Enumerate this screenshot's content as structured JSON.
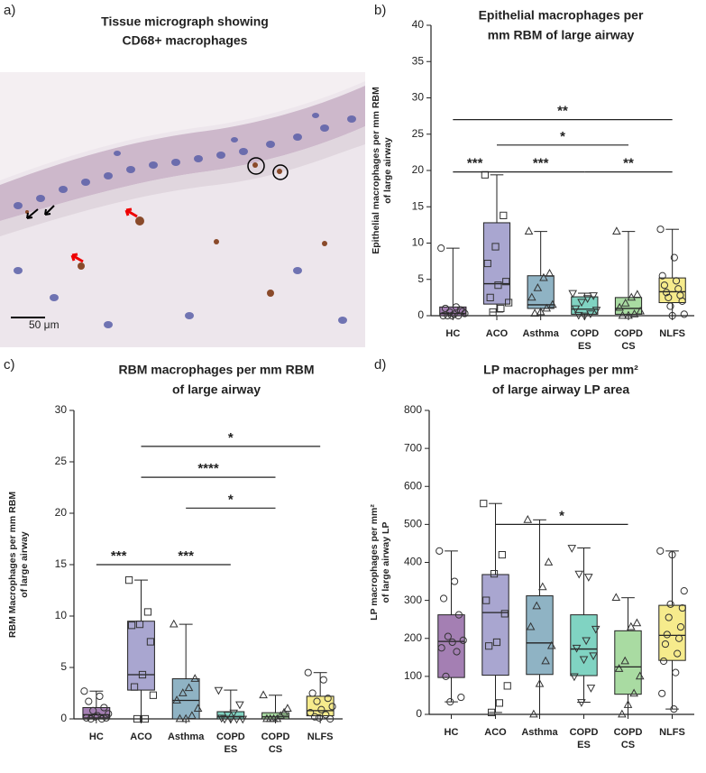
{
  "micrograph": {
    "label": "a)",
    "title": [
      "Tissue micrograph showing",
      "CD68+ macrophages"
    ],
    "scale_bar": "50 μm"
  },
  "chart_data": [
    {
      "type": "box",
      "panel_label": "b)",
      "title": [
        "Epithelial macrophages per",
        "mm RBM of large airway"
      ],
      "ylabel": [
        "Epithelial macrophages per mm RBM",
        "of large airway"
      ],
      "categories": [
        [
          "HC"
        ],
        [
          "ACO"
        ],
        [
          "Asthma"
        ],
        [
          "COPD",
          "ES"
        ],
        [
          "COPD",
          "CS"
        ],
        [
          "NLFS"
        ]
      ],
      "ylim": [
        0,
        40
      ],
      "yticks": [
        0,
        5,
        10,
        15,
        20,
        25,
        30,
        35,
        40
      ],
      "boxes": [
        {
          "color": "#a47fb3",
          "marker": "circle",
          "min": 0,
          "q1": 0,
          "median": 0.3,
          "q3": 1.2,
          "max": 9.3,
          "points": [
            9.3,
            1.2,
            1,
            0.8,
            0.5,
            0.3,
            0.2,
            0,
            0,
            0,
            0.6,
            0
          ]
        },
        {
          "color": "#a9a6d0",
          "marker": "square",
          "min": 0.5,
          "q1": 1.6,
          "median": 4.4,
          "q3": 12.8,
          "max": 19.4,
          "points": [
            19.4,
            13.8,
            9.5,
            7.2,
            4.7,
            4.2,
            2.5,
            1.8,
            1,
            0.5
          ]
        },
        {
          "color": "#8fb3c4",
          "marker": "triangle",
          "min": 0,
          "q1": 1,
          "median": 1.5,
          "q3": 5.5,
          "max": 11.6,
          "points": [
            11.6,
            5.8,
            5.2,
            3.8,
            2.5,
            1.5,
            1,
            0.5,
            0.3
          ]
        },
        {
          "color": "#80d3c2",
          "marker": "triangle-down",
          "min": 0,
          "q1": 0.2,
          "median": 0.9,
          "q3": 2.6,
          "max": 3.1,
          "points": [
            3.1,
            2.8,
            2.4,
            1.9,
            1,
            0.8,
            0.3,
            0,
            0.1
          ]
        },
        {
          "color": "#a9dba2",
          "marker": "triangle",
          "min": 0,
          "q1": 0.2,
          "median": 1,
          "q3": 2.5,
          "max": 11.6,
          "points": [
            11.6,
            2.9,
            2.5,
            1.7,
            1.1,
            0.6,
            0.2,
            0,
            0
          ]
        },
        {
          "color": "#f6eb8c",
          "marker": "circle",
          "min": 0,
          "q1": 1.8,
          "median": 3.3,
          "q3": 5.2,
          "max": 11.9,
          "points": [
            11.9,
            8,
            5.5,
            4.8,
            4.2,
            3.7,
            3.2,
            2.8,
            2.5,
            2,
            1.3,
            0.2,
            0
          ]
        }
      ],
      "significance": [
        {
          "from": 0,
          "to": 5,
          "y": 27,
          "label": "**"
        },
        {
          "from": 1,
          "to": 4,
          "y": 23.5,
          "label": "*"
        },
        {
          "from": 0,
          "to": 1,
          "y": 19.8,
          "label": "***"
        },
        {
          "from": 1,
          "to": 3,
          "y": 19.8,
          "label": "***"
        },
        {
          "from": 3,
          "to": 5,
          "y": 19.8,
          "label": "**"
        }
      ]
    },
    {
      "type": "box",
      "panel_label": "c)",
      "title": [
        "RBM macrophages per mm RBM",
        "of large airway"
      ],
      "ylabel": [
        "RBM Macrophages per mm RBM",
        "of large airway"
      ],
      "categories": [
        [
          "HC"
        ],
        [
          "ACO"
        ],
        [
          "Asthma"
        ],
        [
          "COPD",
          "ES"
        ],
        [
          "COPD",
          "CS"
        ],
        [
          "NLFS"
        ]
      ],
      "ylim": [
        0,
        30
      ],
      "yticks": [
        0,
        5,
        10,
        15,
        20,
        25,
        30
      ],
      "boxes": [
        {
          "color": "#a47fb3",
          "marker": "circle",
          "min": 0,
          "q1": 0.1,
          "median": 0.4,
          "q3": 1.1,
          "max": 2.7,
          "points": [
            2.7,
            2.2,
            1.7,
            1.1,
            0.8,
            0.5,
            0.3,
            0.1,
            0,
            0,
            0.1,
            0.2
          ]
        },
        {
          "color": "#a9a6d0",
          "marker": "square",
          "min": 0,
          "q1": 2.8,
          "median": 4.3,
          "q3": 9.5,
          "max": 13.5,
          "points": [
            13.5,
            10.4,
            9.2,
            9.1,
            7.5,
            4.3,
            3.1,
            2.3,
            0,
            0
          ]
        },
        {
          "color": "#8fb3c4",
          "marker": "triangle",
          "min": 0,
          "q1": 0,
          "median": 1.8,
          "q3": 3.9,
          "max": 9.2,
          "points": [
            9.2,
            3.9,
            3,
            2.5,
            1.8,
            1,
            0.3,
            0,
            0
          ]
        },
        {
          "color": "#80d3c2",
          "marker": "triangle-down",
          "min": 0,
          "q1": 0,
          "median": 0.2,
          "q3": 0.7,
          "max": 2.8,
          "points": [
            2.8,
            1.4,
            0.6,
            0.4,
            0.1,
            0,
            0,
            0,
            0
          ]
        },
        {
          "color": "#a9dba2",
          "marker": "triangle",
          "min": 0,
          "q1": 0,
          "median": 0.2,
          "q3": 0.6,
          "max": 2.3,
          "points": [
            2.3,
            1,
            0.6,
            0.3,
            0,
            0,
            0,
            0
          ]
        },
        {
          "color": "#f6eb8c",
          "marker": "circle",
          "min": 0,
          "q1": 0.3,
          "median": 0.8,
          "q3": 2.2,
          "max": 4.5,
          "points": [
            4.5,
            3.8,
            2.5,
            2,
            1.7,
            1.2,
            0.9,
            0.6,
            0.4,
            0.2,
            0,
            0.1
          ]
        }
      ],
      "significance": [
        {
          "from": 1,
          "to": 5,
          "y": 26.5,
          "label": "*"
        },
        {
          "from": 1,
          "to": 4,
          "y": 23.5,
          "label": "****"
        },
        {
          "from": 2,
          "to": 4,
          "y": 20.5,
          "label": "*"
        },
        {
          "from": 0,
          "to": 1,
          "y": 15,
          "label": "***"
        },
        {
          "from": 1,
          "to": 3,
          "y": 15,
          "label": "***"
        }
      ]
    },
    {
      "type": "box",
      "panel_label": "d)",
      "title": [
        "LP macrophages per mm²",
        "of large airway LP area"
      ],
      "ylabel": [
        "LP macrophages per mm²",
        "of large airway LP"
      ],
      "categories": [
        [
          "HC"
        ],
        [
          "ACO"
        ],
        [
          "Asthma"
        ],
        [
          "COPD",
          "ES"
        ],
        [
          "COPD",
          "CS"
        ],
        [
          "NLFS"
        ]
      ],
      "ylim": [
        0,
        800
      ],
      "yticks": [
        0,
        100,
        200,
        300,
        400,
        500,
        600,
        700,
        800
      ],
      "boxes": [
        {
          "color": "#a47fb3",
          "marker": "circle",
          "min": 33,
          "q1": 97,
          "median": 192,
          "q3": 262,
          "max": 430,
          "points": [
            430,
            350,
            305,
            262,
            205,
            195,
            190,
            175,
            165,
            100,
            45,
            33
          ]
        },
        {
          "color": "#a9a6d0",
          "marker": "square",
          "min": 5,
          "q1": 103,
          "median": 268,
          "q3": 368,
          "max": 555,
          "points": [
            555,
            420,
            370,
            300,
            265,
            190,
            180,
            75,
            30,
            5
          ]
        },
        {
          "color": "#8fb3c4",
          "marker": "triangle",
          "min": 0,
          "q1": 105,
          "median": 188,
          "q3": 312,
          "max": 512,
          "points": [
            512,
            400,
            335,
            285,
            230,
            180,
            140,
            80,
            0
          ]
        },
        {
          "color": "#80d3c2",
          "marker": "triangle-down",
          "min": 32,
          "q1": 102,
          "median": 172,
          "q3": 262,
          "max": 438,
          "points": [
            438,
            362,
            370,
            225,
            195,
            175,
            155,
            145,
            100,
            70,
            32
          ]
        },
        {
          "color": "#a9dba2",
          "marker": "triangle",
          "min": 0,
          "q1": 53,
          "median": 125,
          "q3": 220,
          "max": 307,
          "points": [
            307,
            240,
            230,
            140,
            120,
            100,
            55,
            25,
            0
          ]
        },
        {
          "color": "#f6eb8c",
          "marker": "circle",
          "min": 14,
          "q1": 142,
          "median": 208,
          "q3": 287,
          "max": 430,
          "points": [
            430,
            420,
            325,
            290,
            280,
            255,
            230,
            210,
            200,
            185,
            160,
            140,
            110,
            55,
            14
          ]
        }
      ],
      "significance": [
        {
          "from": 1,
          "to": 4,
          "y": 500,
          "label": "*"
        }
      ]
    }
  ]
}
